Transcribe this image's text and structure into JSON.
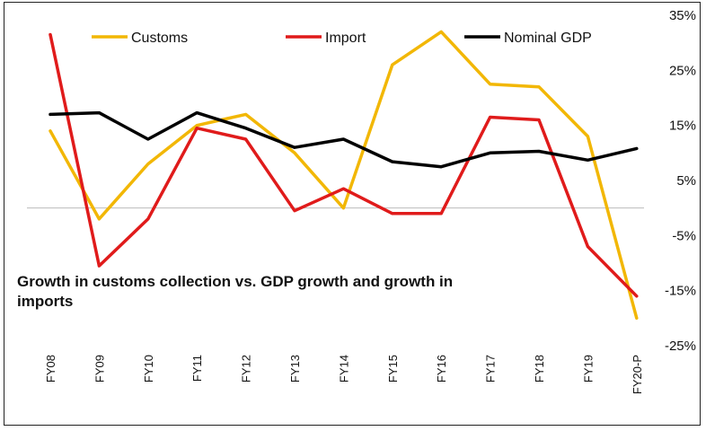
{
  "chart_data": {
    "type": "line",
    "title": "Growth in customs collection vs. GDP growth and growth in imports",
    "categories": [
      "FY08",
      "FY09",
      "FY10",
      "FY11",
      "FY12",
      "FY13",
      "FY14",
      "FY15",
      "FY16",
      "FY17",
      "FY18",
      "FY19",
      "FY20-P"
    ],
    "y_ticks": [
      "35%",
      "25%",
      "15%",
      "5%",
      "-5%",
      "-15%",
      "-25%"
    ],
    "ylim": [
      -25,
      35
    ],
    "y_unit": "%",
    "legend_position": "top",
    "series": [
      {
        "name": "Customs",
        "color": "#F2B705",
        "values": [
          14,
          -2,
          8,
          15,
          17,
          10,
          0,
          26,
          32,
          22.5,
          22,
          13,
          -20
        ]
      },
      {
        "name": "Import",
        "color": "#E01B1B",
        "values": [
          31.5,
          -10.5,
          -2,
          14.5,
          12.5,
          -0.5,
          3.5,
          -1,
          -1,
          16.5,
          16,
          -7,
          -16
        ]
      },
      {
        "name": "Nominal GDP",
        "color": "#000000",
        "values": [
          17,
          17.3,
          12.5,
          17.3,
          14.5,
          11,
          12.5,
          8.4,
          7.5,
          10,
          10.3,
          8.7,
          10.8
        ]
      }
    ],
    "zero_line": true
  }
}
